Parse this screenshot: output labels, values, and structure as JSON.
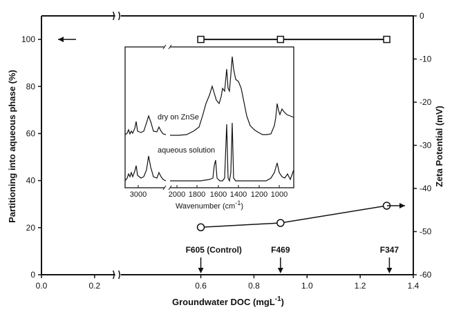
{
  "chart_data": {
    "type": "line",
    "xlabel": "Groundwater DOC (mgL",
    "xlabel_sup": "-1",
    "xlabel_suffix": ")",
    "ylabel_left": "Partitioning into aqueous phase (%)",
    "ylabel_right": "Zeta Potential (mV)",
    "xlim": [
      0.0,
      1.4
    ],
    "ylim_left": [
      0,
      110
    ],
    "ylim_right": [
      -60,
      0
    ],
    "x_ticks": [
      "0.0",
      "0.2",
      "0.6",
      "0.8",
      "1.0",
      "1.2",
      "1.4"
    ],
    "x_tick_values": [
      0.0,
      0.2,
      0.6,
      0.8,
      1.0,
      1.2,
      1.4
    ],
    "y_left_ticks": [
      0,
      20,
      40,
      60,
      80,
      100
    ],
    "y_right_ticks": [
      0,
      -10,
      -20,
      -30,
      -40,
      -50,
      -60
    ],
    "axis_break": "x-axis break between 0.2 and 0.6",
    "series": [
      {
        "name": "",
        "axis": "left",
        "marker": "square",
        "x": [
          0.6,
          0.9,
          1.3
        ],
        "y": [
          100,
          100,
          100
        ]
      },
      {
        "name": "",
        "axis": "right",
        "marker": "circle",
        "x": [
          0.6,
          0.9,
          1.3
        ],
        "y": [
          -49,
          -48,
          -44
        ]
      }
    ],
    "annotations": [
      {
        "text": "F605 (Control)",
        "x": 0.6
      },
      {
        "text": "F469",
        "x": 0.9
      },
      {
        "text": "F347",
        "x": 1.31
      }
    ],
    "inset": {
      "type": "line",
      "xlabel": "Wavenumber (cm",
      "xlabel_sup": "-1",
      "xlabel_suffix": ")",
      "tick_labels": [
        "3000",
        "2000",
        "1800",
        "1600",
        "1400",
        "1200",
        "1000"
      ],
      "axis_break": "between 2600 and 2000",
      "curve_labels": [
        "dry on ZnSe",
        "aqueous solution"
      ]
    }
  }
}
